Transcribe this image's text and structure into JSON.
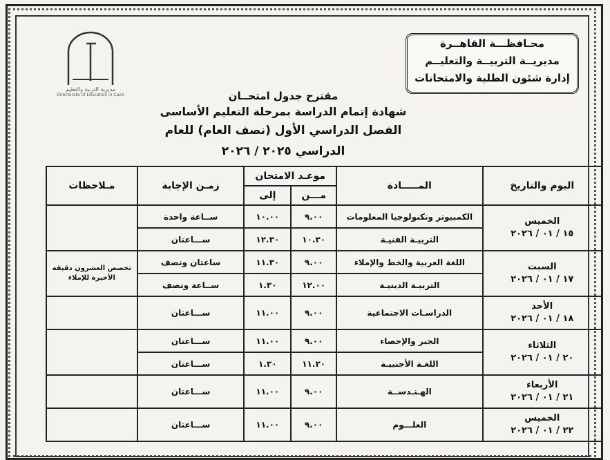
{
  "header": {
    "line1": "محـافظـــة القاهــرة",
    "line2": "مديريــة التربيــة والتعليــم",
    "line3": "إدارة شئون الطلبة والامتحانات"
  },
  "logo": {
    "name": "القاهرة",
    "sub_ar": "مديرية التربية والتعليم",
    "sub_en": "Directorate of Education in Cairo"
  },
  "titles": {
    "t1": "مقترح جدول امتحــان",
    "t2": "شهادة إتمام الدراسة بمرحلة التعليم الأساسى",
    "t3": "الفصل الدراسي الأول (نصف العام) للعام الدراسي ٢٠٢٥ / ٢٠٢٦"
  },
  "table": {
    "headers": {
      "day": "اليوم والتاريخ",
      "subject": "المـــــادة",
      "time": "موعـد الامتحان",
      "from": "مـــن",
      "to": "إلى",
      "duration": "زمـن الإجابة",
      "notes": "مـلاحظات"
    },
    "days": [
      {
        "day": "الخميس",
        "date": "١٥ / ٠١ / ٢٠٢٦",
        "rows": [
          {
            "subject": "الكمبيوتر وتكنولوجيا المعلومات",
            "from": "٩.٠٠",
            "to": "١٠.٠٠",
            "duration": "ســاعة واحدة"
          },
          {
            "subject": "التربيـة الفنيـة",
            "from": "١٠.٣٠",
            "to": "١٢.٣٠",
            "duration": "ســـاعتان"
          }
        ],
        "note": ""
      },
      {
        "day": "السبت",
        "date": "١٧ / ٠١ / ٢٠٢٦",
        "rows": [
          {
            "subject": "اللغة العربية والخط والإملاء",
            "from": "٩.٠٠",
            "to": "١١.٣٠",
            "duration": "ساعتان ونصف"
          },
          {
            "subject": "التربيـة الدينيـة",
            "from": "١٢.٠٠",
            "to": "١.٣٠",
            "duration": "ســاعة ونصف"
          }
        ],
        "note": "تخصص العشرون دقيقة الأخيرة للإملاء"
      },
      {
        "day": "الأحد",
        "date": "١٨ / ٠١ / ٢٠٢٦",
        "rows": [
          {
            "subject": "الدراسـات الاجتماعية",
            "from": "٩.٠٠",
            "to": "١١.٠٠",
            "duration": "ســـاعتان"
          }
        ],
        "note": ""
      },
      {
        "day": "الثلاثاء",
        "date": "٢٠ / ٠١ / ٢٠٢٦",
        "rows": [
          {
            "subject": "الجبر والإحصاء",
            "from": "٩.٠٠",
            "to": "١١.٠٠",
            "duration": "ســـاعتان"
          },
          {
            "subject": "اللغـة الأجنبيـة",
            "from": "١١.٣٠",
            "to": "١.٣٠",
            "duration": "ســـاعتان"
          }
        ],
        "note": ""
      },
      {
        "day": "الأربعاء",
        "date": "٢١ / ٠١ / ٢٠٢٦",
        "rows": [
          {
            "subject": "الهـنـدســة",
            "from": "٩.٠٠",
            "to": "١١.٠٠",
            "duration": "ســـاعتان"
          }
        ],
        "note": ""
      },
      {
        "day": "الخميس",
        "date": "٢٢ / ٠١ / ٢٠٢٦",
        "rows": [
          {
            "subject": "العلـــوم",
            "from": "٩.٠٠",
            "to": "١١.٠٠",
            "duration": "ســـاعتان"
          }
        ],
        "note": ""
      }
    ]
  }
}
